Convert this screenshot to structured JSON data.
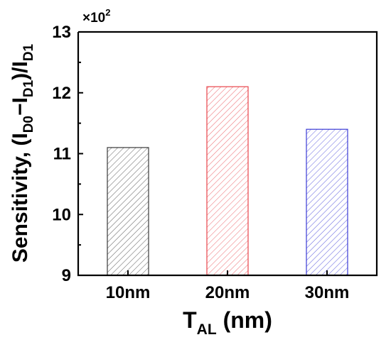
{
  "chart_data": {
    "type": "bar",
    "categories": [
      "10nm",
      "20nm",
      "30nm"
    ],
    "values": [
      1110,
      1210,
      1140
    ],
    "bar_colors": [
      "#3a3a3a",
      "#e8444a",
      "#3b3bd6"
    ],
    "bar_fill": "diagonal-hatch",
    "ylim": [
      900,
      1300
    ],
    "yticks": [
      900,
      1000,
      1100,
      1200,
      1300
    ],
    "ytick_labels": [
      "9",
      "10",
      "11",
      "12",
      "13"
    ],
    "y_multiplier": "×10",
    "y_multiplier_exp": "2",
    "xlabel": {
      "main": "T",
      "sub": "AL",
      "rest": " (nm)"
    },
    "ylabel": {
      "p1": "Sensitivity, (I",
      "s1": "D0",
      "p2": "−I",
      "s2": "D1",
      "p3": ")/I",
      "s3": "D1"
    },
    "grid": false
  }
}
